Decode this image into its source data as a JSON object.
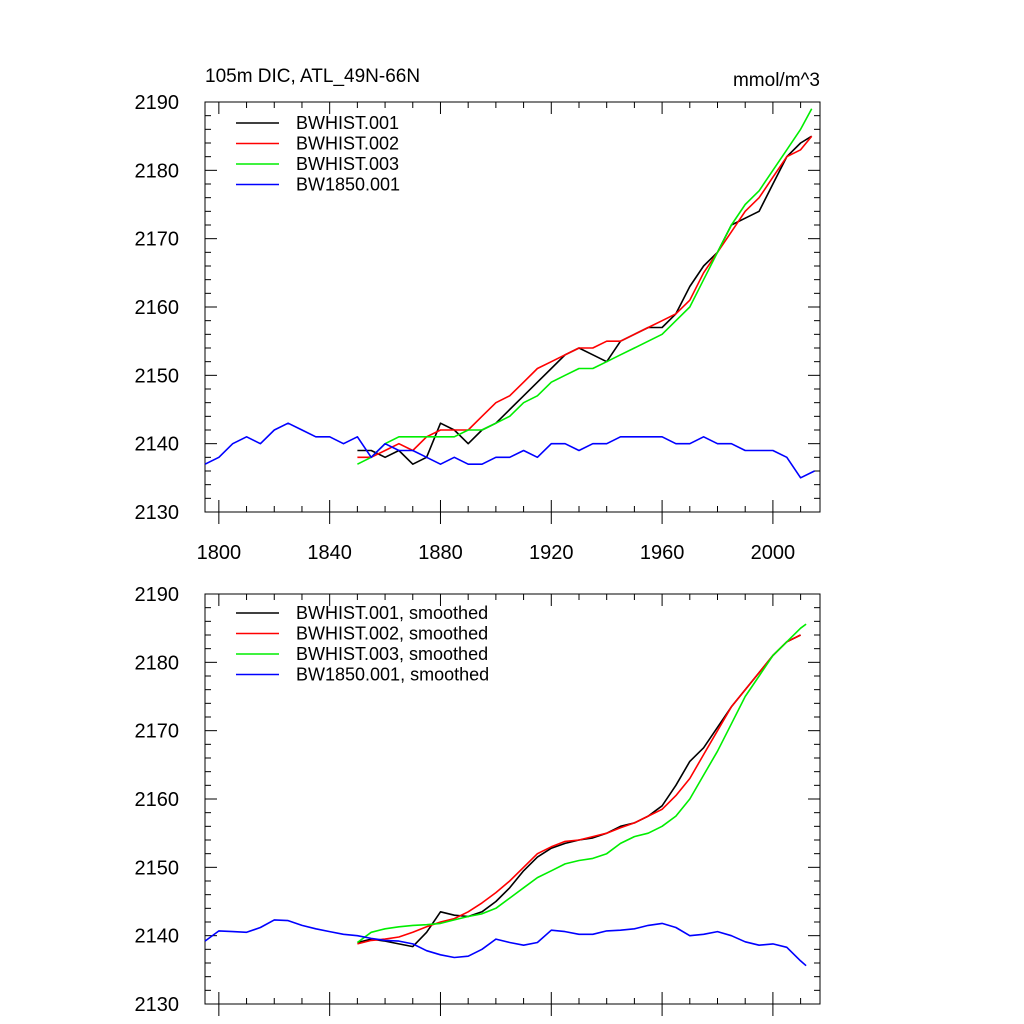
{
  "figure": {
    "title_left": "105m DIC, ATL_49N-66N",
    "title_right": "mmol/m^3"
  },
  "chart_data": [
    {
      "type": "line",
      "panel": "top",
      "title": "105m DIC, ATL_49N-66N",
      "units": "mmol/m^3",
      "xlim": [
        1795,
        2017
      ],
      "ylim": [
        2130,
        2190
      ],
      "xticks": [
        1800,
        1840,
        1880,
        1920,
        1960,
        2000
      ],
      "yticks": [
        2130,
        2140,
        2150,
        2160,
        2170,
        2180,
        2190
      ],
      "xtick_labels": [
        "1800",
        "1840",
        "1880",
        "1920",
        "1960",
        "2000"
      ],
      "ytick_labels": [
        "2130",
        "2140",
        "2150",
        "2160",
        "2170",
        "2180",
        "2190"
      ],
      "legend_position": "top-left",
      "series": [
        {
          "name": "BWHIST.001",
          "color": "#000000",
          "x": [
            1850,
            1855,
            1860,
            1865,
            1870,
            1875,
            1880,
            1885,
            1890,
            1895,
            1900,
            1905,
            1910,
            1915,
            1920,
            1925,
            1930,
            1935,
            1940,
            1945,
            1950,
            1955,
            1960,
            1965,
            1970,
            1975,
            1980,
            1985,
            1990,
            1995,
            2000,
            2005,
            2010,
            2014
          ],
          "y": [
            2139,
            2139,
            2138,
            2139,
            2137,
            2138,
            2143,
            2142,
            2140,
            2142,
            2143,
            2145,
            2147,
            2149,
            2151,
            2153,
            2154,
            2153,
            2152,
            2155,
            2156,
            2157,
            2157,
            2159,
            2163,
            2166,
            2168,
            2172,
            2173,
            2174,
            2178,
            2182,
            2184,
            2185
          ]
        },
        {
          "name": "BWHIST.002",
          "color": "#ff0000",
          "x": [
            1850,
            1855,
            1860,
            1865,
            1870,
            1875,
            1880,
            1885,
            1890,
            1895,
            1900,
            1905,
            1910,
            1915,
            1920,
            1925,
            1930,
            1935,
            1940,
            1945,
            1950,
            1955,
            1960,
            1965,
            1970,
            1975,
            1980,
            1985,
            1990,
            1995,
            2000,
            2005,
            2010,
            2014
          ],
          "y": [
            2138,
            2138,
            2139,
            2140,
            2139,
            2141,
            2142,
            2142,
            2142,
            2144,
            2146,
            2147,
            2149,
            2151,
            2152,
            2153,
            2154,
            2154,
            2155,
            2155,
            2156,
            2157,
            2158,
            2159,
            2161,
            2165,
            2168,
            2171,
            2174,
            2176,
            2179,
            2182,
            2183,
            2185
          ]
        },
        {
          "name": "BWHIST.003",
          "color": "#00ee00",
          "x": [
            1850,
            1855,
            1860,
            1865,
            1870,
            1875,
            1880,
            1885,
            1890,
            1895,
            1900,
            1905,
            1910,
            1915,
            1920,
            1925,
            1930,
            1935,
            1940,
            1945,
            1950,
            1955,
            1960,
            1965,
            1970,
            1975,
            1980,
            1985,
            1990,
            1995,
            2000,
            2005,
            2010,
            2014
          ],
          "y": [
            2137,
            2138,
            2140,
            2141,
            2141,
            2141,
            2141,
            2141,
            2142,
            2142,
            2143,
            2144,
            2146,
            2147,
            2149,
            2150,
            2151,
            2151,
            2152,
            2153,
            2154,
            2155,
            2156,
            2158,
            2160,
            2164,
            2168,
            2172,
            2175,
            2177,
            2180,
            2183,
            2186,
            2189
          ]
        },
        {
          "name": "BW1850.001",
          "color": "#0000ff",
          "x": [
            1795,
            1800,
            1805,
            1810,
            1815,
            1820,
            1825,
            1830,
            1835,
            1840,
            1845,
            1850,
            1855,
            1860,
            1865,
            1870,
            1875,
            1880,
            1885,
            1890,
            1895,
            1900,
            1905,
            1910,
            1915,
            1920,
            1925,
            1930,
            1935,
            1940,
            1945,
            1950,
            1955,
            1960,
            1965,
            1970,
            1975,
            1980,
            1985,
            1990,
            1995,
            2000,
            2005,
            2010,
            2015
          ],
          "y": [
            2137,
            2138,
            2140,
            2141,
            2140,
            2142,
            2143,
            2142,
            2141,
            2141,
            2140,
            2141,
            2138,
            2140,
            2139,
            2139,
            2138,
            2137,
            2138,
            2137,
            2137,
            2138,
            2138,
            2139,
            2138,
            2140,
            2140,
            2139,
            2140,
            2140,
            2141,
            2141,
            2141,
            2141,
            2140,
            2140,
            2141,
            2140,
            2140,
            2139,
            2139,
            2139,
            2138,
            2135,
            2136
          ]
        }
      ]
    },
    {
      "type": "line",
      "panel": "bottom",
      "xlim": [
        1795,
        2017
      ],
      "ylim": [
        2130,
        2190
      ],
      "xticks": [
        1800,
        1840,
        1880,
        1920,
        1960,
        2000
      ],
      "yticks": [
        2130,
        2140,
        2150,
        2160,
        2170,
        2180,
        2190
      ],
      "ytick_labels": [
        "2130",
        "2140",
        "2150",
        "2160",
        "2170",
        "2180",
        "2190"
      ],
      "legend_position": "top-left",
      "series": [
        {
          "name": "BWHIST.001, smoothed",
          "color": "#000000",
          "x": [
            1850,
            1855,
            1860,
            1865,
            1870,
            1875,
            1880,
            1885,
            1890,
            1895,
            1900,
            1905,
            1910,
            1915,
            1920,
            1925,
            1930,
            1935,
            1940,
            1945,
            1950,
            1955,
            1960,
            1965,
            1970,
            1975,
            1980,
            1985,
            1990,
            1995,
            2000,
            2005,
            2010
          ],
          "y": [
            2139,
            2139.5,
            2139.2,
            2138.8,
            2138.4,
            2140.5,
            2143.5,
            2143,
            2142.8,
            2143.5,
            2145,
            2147,
            2149.5,
            2151.5,
            2152.8,
            2153.5,
            2154,
            2154.3,
            2155,
            2156,
            2156.5,
            2157.5,
            2159,
            2162,
            2165.5,
            2167.5,
            2170.5,
            2173.5,
            2176,
            2178.5,
            2181,
            2183,
            2184
          ]
        },
        {
          "name": "BWHIST.002, smoothed",
          "color": "#ff0000",
          "x": [
            1850,
            1855,
            1860,
            1865,
            1870,
            1875,
            1880,
            1885,
            1890,
            1895,
            1900,
            1905,
            1910,
            1915,
            1920,
            1925,
            1930,
            1935,
            1940,
            1945,
            1950,
            1955,
            1960,
            1965,
            1970,
            1975,
            1980,
            1985,
            1990,
            1995,
            2000,
            2005,
            2010
          ],
          "y": [
            2138.8,
            2139.3,
            2139.5,
            2139.8,
            2140.5,
            2141.3,
            2142,
            2142.5,
            2143.5,
            2144.8,
            2146.3,
            2148,
            2150,
            2152,
            2153,
            2153.8,
            2154,
            2154.5,
            2155,
            2155.8,
            2156.5,
            2157.5,
            2158.5,
            2160.5,
            2163,
            2166.5,
            2170,
            2173.5,
            2176,
            2178.5,
            2181,
            2183,
            2184
          ]
        },
        {
          "name": "BWHIST.003, smoothed",
          "color": "#00ee00",
          "x": [
            1850,
            1855,
            1860,
            1865,
            1870,
            1875,
            1880,
            1885,
            1890,
            1895,
            1900,
            1905,
            1910,
            1915,
            1920,
            1925,
            1930,
            1935,
            1940,
            1945,
            1950,
            1955,
            1960,
            1965,
            1970,
            1975,
            1980,
            1985,
            1990,
            1995,
            2000,
            2005,
            2010,
            2012
          ],
          "y": [
            2139,
            2140.5,
            2141,
            2141.3,
            2141.5,
            2141.6,
            2141.8,
            2142.3,
            2142.8,
            2143.2,
            2144,
            2145.5,
            2147,
            2148.5,
            2149.5,
            2150.5,
            2151,
            2151.3,
            2152,
            2153.5,
            2154.5,
            2155,
            2156,
            2157.5,
            2160,
            2163.5,
            2167,
            2171,
            2175,
            2178,
            2181,
            2183,
            2185,
            2185.6
          ]
        },
        {
          "name": "BW1850.001, smoothed",
          "color": "#0000ff",
          "x": [
            1795,
            1800,
            1805,
            1810,
            1815,
            1820,
            1825,
            1830,
            1835,
            1840,
            1845,
            1850,
            1855,
            1860,
            1865,
            1870,
            1875,
            1880,
            1885,
            1890,
            1895,
            1900,
            1905,
            1910,
            1915,
            1920,
            1925,
            1930,
            1935,
            1940,
            1945,
            1950,
            1955,
            1960,
            1965,
            1970,
            1975,
            1980,
            1985,
            1990,
            1995,
            2000,
            2005,
            2010,
            2012
          ],
          "y": [
            2139.2,
            2140.7,
            2140.6,
            2140.5,
            2141.2,
            2142.3,
            2142.2,
            2141.5,
            2141,
            2140.6,
            2140.2,
            2140,
            2139.6,
            2139.3,
            2139.2,
            2138.8,
            2137.8,
            2137.2,
            2136.8,
            2137,
            2138,
            2139.5,
            2139,
            2138.6,
            2139,
            2140.8,
            2140.6,
            2140.2,
            2140.2,
            2140.7,
            2140.8,
            2141,
            2141.5,
            2141.8,
            2141.2,
            2140,
            2140.2,
            2140.6,
            2140,
            2139.1,
            2138.6,
            2138.8,
            2138.3,
            2136.3,
            2135.6
          ]
        }
      ]
    }
  ]
}
